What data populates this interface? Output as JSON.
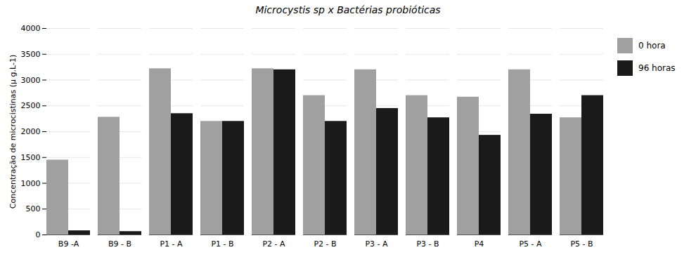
{
  "chart_data": {
    "type": "bar",
    "title": "Microcystis sp x Bactérias probióticas",
    "categories": [
      "B9 -A",
      "B9 - B",
      "P1 - A",
      "P1 - B",
      "P2 - A",
      "P2 - B",
      "P3 - A",
      "P3 - B",
      "P4",
      "P5 - A",
      "P5 - B"
    ],
    "series": [
      {
        "name": "0 hora",
        "color": "#a0a0a0",
        "values": [
          1450,
          2280,
          3220,
          2200,
          3220,
          2700,
          3200,
          2700,
          2670,
          3200,
          2270
        ]
      },
      {
        "name": "96 horas",
        "color": "#1a1a1a",
        "values": [
          80,
          65,
          2350,
          2200,
          3200,
          2200,
          2450,
          2270,
          1930,
          2340,
          2700
        ]
      }
    ],
    "ylabel": "Concentração de microcistinas (μ g.L-1)",
    "ylim": [
      0,
      4000
    ],
    "yticks": [
      0,
      500,
      1000,
      1500,
      2000,
      2500,
      3000,
      3500,
      4000
    ],
    "grid": true,
    "legend": "right"
  }
}
